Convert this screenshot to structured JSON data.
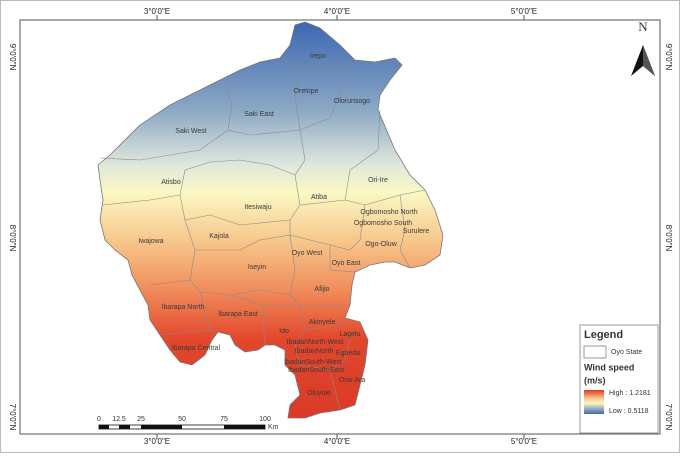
{
  "map": {
    "north": "N",
    "lon_labels": [
      "3°0'0\"E",
      "4°0'0\"E",
      "5°0'0\"E"
    ],
    "lat_labels": [
      "9°0'0\"N",
      "8°0'0\"N",
      "7°0'0\"N"
    ],
    "districts": [
      "Irepo",
      "Orelope",
      "Olorunsogo",
      "Saki East",
      "Saki West",
      "Ori-Ire",
      "Atisbo",
      "Atiba",
      "Itesiwaju",
      "Ogbomosho North",
      "Ogbomosho South",
      "Surulere",
      "Kajola",
      "Iwajowa",
      "Ogo-Oluw",
      "Oyo West",
      "Oyo East",
      "Iseyin",
      "Afijio",
      "Ibarapa North",
      "Ibarapa East",
      "Akinyele",
      "Ido",
      "Lagelu",
      "IbadanNorth-West",
      "IbadanNorth",
      "Egbeda",
      "IbadanSouth-West",
      "IbadanSouth-East",
      "Ona-Ara",
      "Ibarapa Central",
      "Oluyole"
    ],
    "scale": {
      "labels": [
        "0",
        "12.5",
        "25",
        "50",
        "75",
        "100"
      ],
      "unit": "Km"
    },
    "legend": {
      "title": "Legend",
      "boundary": "Oyo State",
      "field": "Wind speed",
      "unit": "(m/s)",
      "high": "High : 1.2181",
      "low": "Low : 0.5118"
    }
  }
}
